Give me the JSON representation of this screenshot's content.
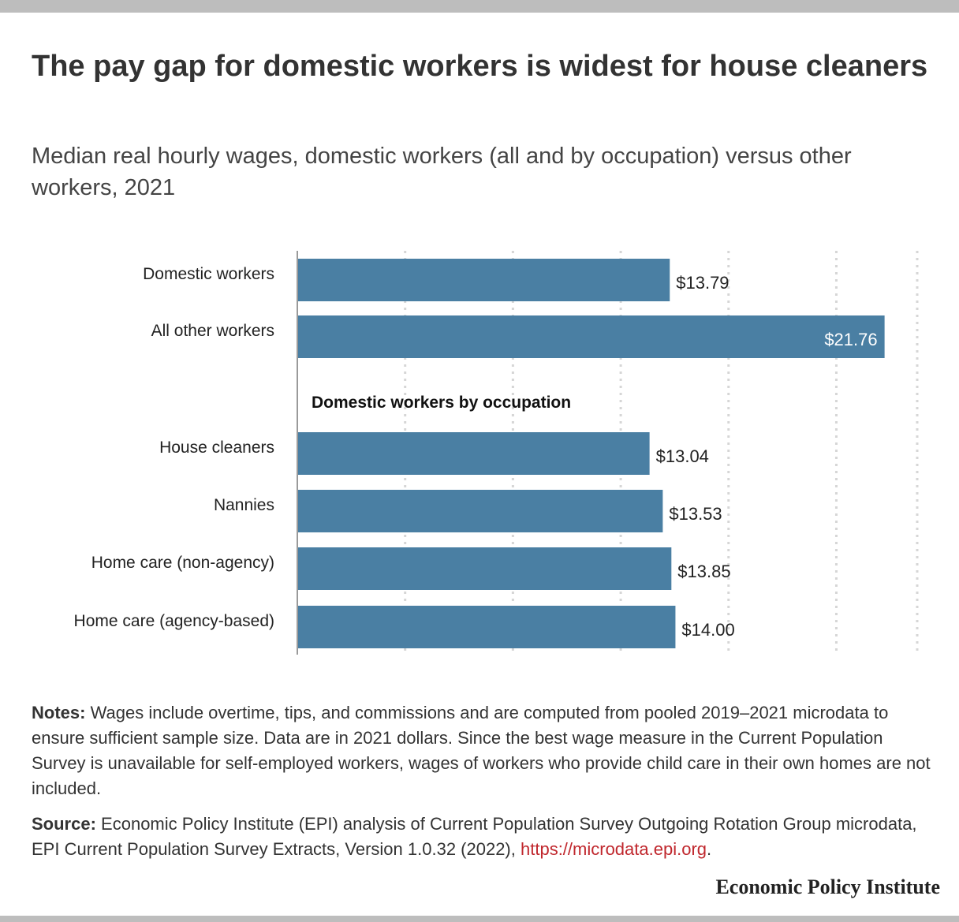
{
  "title": "The pay gap for domestic workers is widest for house cleaners",
  "subtitle": "Median real hourly wages, domestic workers (all and by occupation) versus other workers, 2021",
  "chart_data": {
    "type": "bar",
    "orientation": "horizontal",
    "categories": [
      "Domestic workers",
      "All other workers",
      "House cleaners",
      "Nannies",
      "Home care (non-agency)",
      "Home care (agency-based)"
    ],
    "values": [
      13.79,
      21.76,
      13.04,
      13.53,
      13.85,
      14.0
    ],
    "value_labels": [
      "$13.79",
      "$21.76",
      "$13.04",
      "$13.53",
      "$13.85",
      "$14.00"
    ],
    "group_label": "Domestic workers by occupation",
    "xlim": [
      0,
      23
    ],
    "grid": true,
    "bar_color": "#4a7fa3"
  },
  "notes": {
    "label": "Notes:",
    "text": "Wages include overtime, tips, and commissions and are computed from pooled 2019–2021 microdata to ensure sufficient sample size. Data are in 2021 dollars. Since the best wage measure in the Current Population Survey is unavailable for self-employed workers, wages of workers who provide child care in their own homes are not included."
  },
  "source": {
    "label": "Source:",
    "text": "Economic Policy Institute (EPI) analysis of Current Population Survey Outgoing Rotation Group microdata, EPI Current Population Survey Extracts, Version 1.0.32 (2022), ",
    "link": "https://microdata.epi.org",
    "end": "."
  },
  "brand": "Economic Policy Institute"
}
